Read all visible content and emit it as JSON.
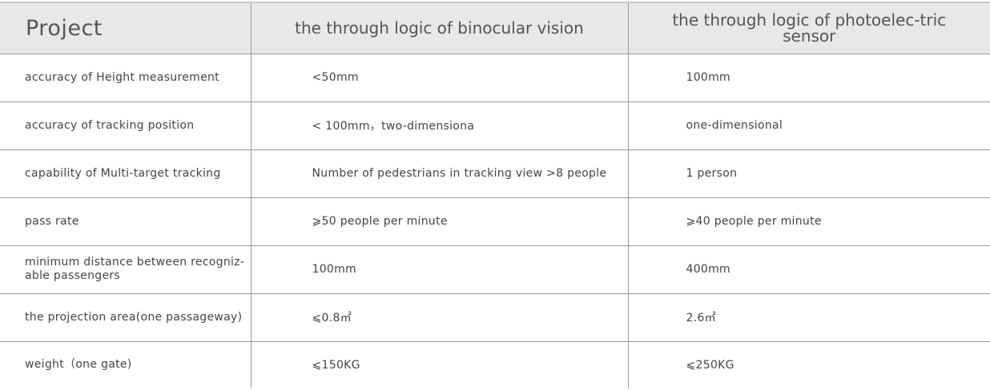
{
  "header": {
    "col1": "Project",
    "col2": "the through logic of binocular vision",
    "col3": "the through logic of photoelec-tric sensor"
  },
  "rows": [
    {
      "item": "accuracy of Height measurement",
      "binocular": "<50mm",
      "photoelectric": "100mm"
    },
    {
      "item": "accuracy of tracking position",
      "binocular": "< 100mm，two-dimensiona",
      "photoelectric": "one-dimensional"
    },
    {
      "item": "capability of Multi-target tracking",
      "binocular": "Number of pedestrians in tracking view >8 people",
      "photoelectric": "1 person"
    },
    {
      "item": "pass rate",
      "binocular": "⩾50 people per minute",
      "photoelectric": "⩾40 people per minute"
    },
    {
      "item": "minimum distance between recogniz-able passengers",
      "binocular": "100mm",
      "photoelectric": "400mm"
    },
    {
      "item": "the projection area(one passageway)",
      "binocular": "⩽0.8㎡",
      "photoelectric": "2.6㎡"
    },
    {
      "item": "weight（one gate)",
      "binocular": "⩽150KG",
      "photoelectric": "⩽250KG"
    }
  ]
}
